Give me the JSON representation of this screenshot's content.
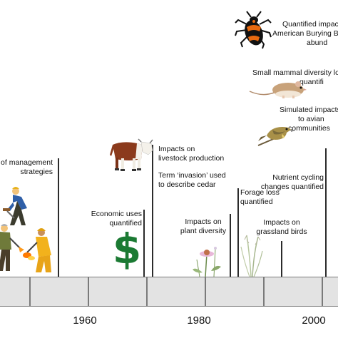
{
  "timeline": {
    "years": [
      "1960",
      "1980",
      "2000"
    ]
  },
  "events": {
    "management": [
      "of management",
      "strategies"
    ],
    "economic": [
      "Economic uses",
      "quantified"
    ],
    "livestock": [
      "Impacts on",
      "livestock production"
    ],
    "invasion": [
      "Term ‘invasion’ used",
      "to describe cedar"
    ],
    "plant_diversity": [
      "Impacts on",
      "plant diversity"
    ],
    "forage": [
      "Forage loss",
      "quantified"
    ],
    "grassland_birds": [
      "Impacts on",
      "grassland birds"
    ],
    "nutrient": [
      "Nutrient cycling",
      "changes quantified"
    ],
    "avian": [
      "Simulated impacts",
      "to avian",
      "communities"
    ],
    "mammal": [
      "Small mammal diversity lo",
      "quantifi"
    ],
    "beetle": [
      "Quantified impac",
      "American Burying Be",
      "abund"
    ]
  },
  "icons": {
    "dollar": "$",
    "dollar_color": "#1b7a33"
  }
}
